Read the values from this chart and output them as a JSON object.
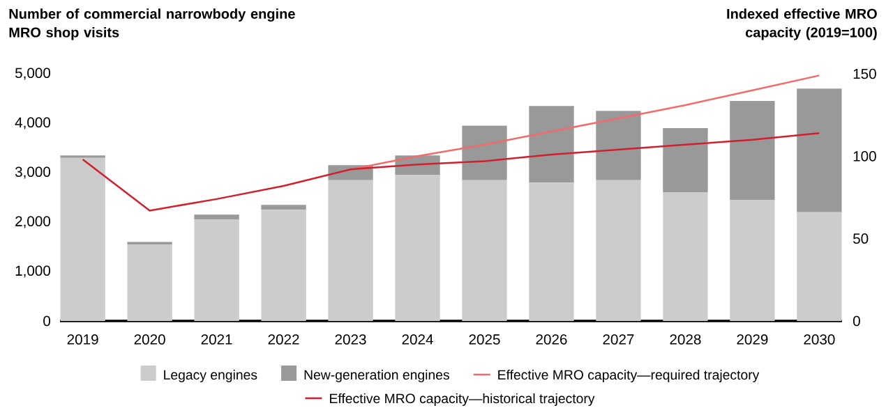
{
  "chart_data": {
    "type": "bar",
    "stacked": true,
    "ylabel": "Number of commercial narrowbody engine MRO shop visits",
    "y2label": "Indexed effective MRO capacity (2019=100)",
    "categories": [
      "2019",
      "2020",
      "2021",
      "2022",
      "2023",
      "2024",
      "2025",
      "2026",
      "2027",
      "2028",
      "2029",
      "2030"
    ],
    "series": [
      {
        "name": "Legacy engines",
        "color": "#cccccc",
        "values": [
          3300,
          1550,
          2050,
          2250,
          2850,
          2950,
          2850,
          2800,
          2850,
          2600,
          2450,
          2200
        ]
      },
      {
        "name": "New-generation engines",
        "color": "#999999",
        "values": [
          50,
          50,
          100,
          100,
          300,
          400,
          1100,
          1550,
          1400,
          1300,
          2000,
          2500
        ]
      },
      {
        "name": "Effective MRO capacity—required trajectory",
        "type": "line",
        "axis": "y2",
        "color": "#f26b6b",
        "values": [
          null,
          null,
          null,
          null,
          92,
          100,
          107,
          115,
          123,
          131,
          140,
          149
        ]
      },
      {
        "name": "Effective MRO capacity—historical trajectory",
        "type": "line",
        "axis": "y2",
        "color": "#d0202e",
        "values": [
          98,
          67,
          74,
          82,
          92,
          95,
          97,
          101,
          104,
          107,
          110,
          114
        ]
      }
    ],
    "ylim": [
      0,
      5000
    ],
    "yticks": [
      {
        "value": 0,
        "label": "0"
      },
      {
        "value": 1000,
        "label": "1,000"
      },
      {
        "value": 2000,
        "label": "2,000"
      },
      {
        "value": 3000,
        "label": "3,000"
      },
      {
        "value": 4000,
        "label": "4,000"
      },
      {
        "value": 5000,
        "label": "5,000"
      }
    ],
    "y2lim": [
      0,
      150
    ],
    "y2ticks": [
      0,
      50,
      100,
      150
    ],
    "grid": false,
    "legend": "bottom"
  }
}
